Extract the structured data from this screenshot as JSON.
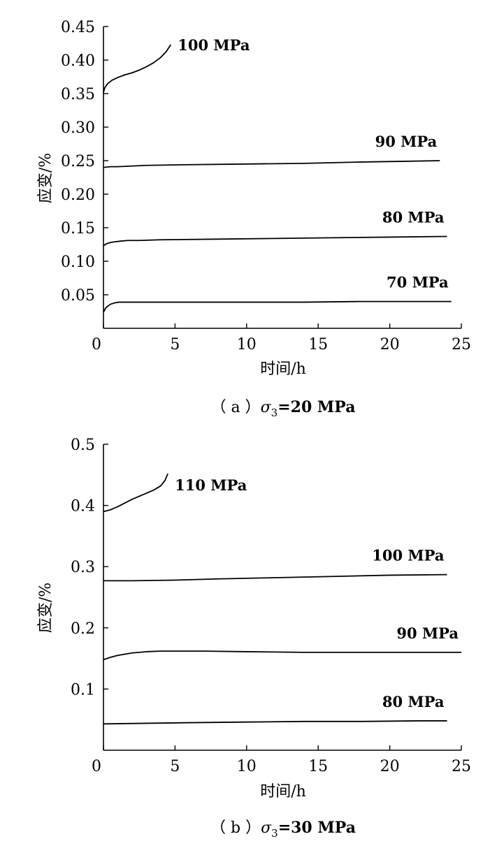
{
  "chart_data": [
    {
      "type": "line",
      "caption_prefix": "（ a ）",
      "caption_sigma": "σ",
      "caption_sub": "3",
      "caption_rest": "=20 MPa",
      "xlabel": "时间/h",
      "ylabel": "应变/%",
      "xlim": [
        0,
        25
      ],
      "ylim": [
        0,
        0.45
      ],
      "xticks": [
        "0",
        "5",
        "10",
        "15",
        "20",
        "25"
      ],
      "yticks": [
        "0.05",
        "0.10",
        "0.15",
        "0.20",
        "0.25",
        "0.30",
        "0.35",
        "0.40",
        "0.45"
      ],
      "grid": false,
      "series": [
        {
          "name": "100 MPa",
          "x": [
            0,
            0.1,
            0.3,
            0.6,
            1.0,
            1.5,
            2.0,
            2.5,
            3.0,
            3.5,
            4.0,
            4.4,
            4.7
          ],
          "y": [
            0.352,
            0.359,
            0.365,
            0.37,
            0.374,
            0.378,
            0.381,
            0.385,
            0.39,
            0.396,
            0.404,
            0.413,
            0.423
          ]
        },
        {
          "name": "90 MPa",
          "x": [
            0,
            0.5,
            1,
            3,
            6,
            10,
            14,
            18,
            21,
            23.5
          ],
          "y": [
            0.24,
            0.241,
            0.241,
            0.243,
            0.244,
            0.245,
            0.246,
            0.248,
            0.249,
            0.25
          ]
        },
        {
          "name": "80 MPa",
          "x": [
            0,
            0.2,
            0.5,
            0.8,
            1.2,
            1.7,
            2.5,
            4,
            8,
            12,
            16,
            20,
            24
          ],
          "y": [
            0.123,
            0.126,
            0.128,
            0.129,
            0.13,
            0.131,
            0.131,
            0.132,
            0.133,
            0.134,
            0.135,
            0.136,
            0.137
          ]
        },
        {
          "name": "70 MPa",
          "x": [
            0,
            0.15,
            0.3,
            0.5,
            0.8,
            1.1,
            1.5,
            2.0,
            3,
            6,
            10,
            14,
            18,
            22,
            24.3
          ],
          "y": [
            0.024,
            0.03,
            0.033,
            0.036,
            0.038,
            0.039,
            0.039,
            0.039,
            0.039,
            0.039,
            0.039,
            0.039,
            0.04,
            0.04,
            0.04
          ]
        }
      ]
    },
    {
      "type": "line",
      "caption_prefix": "（ b ）",
      "caption_sigma": "σ",
      "caption_sub": "3",
      "caption_rest": "=30 MPa",
      "xlabel": "时间/h",
      "ylabel": "应变/%",
      "xlim": [
        0,
        25
      ],
      "ylim": [
        0,
        0.5
      ],
      "xticks": [
        "0",
        "5",
        "10",
        "15",
        "20",
        "25"
      ],
      "yticks": [
        "0.1",
        "0.2",
        "0.3",
        "0.4",
        "0.5"
      ],
      "grid": false,
      "series": [
        {
          "name": "110 MPa",
          "x": [
            0,
            0.5,
            1.0,
            1.5,
            2.0,
            2.5,
            3.0,
            3.5,
            4.0,
            4.3,
            4.5
          ],
          "y": [
            0.39,
            0.393,
            0.398,
            0.404,
            0.41,
            0.415,
            0.42,
            0.425,
            0.432,
            0.441,
            0.452
          ]
        },
        {
          "name": "100 MPa",
          "x": [
            0,
            2,
            5,
            8,
            12,
            16,
            20,
            24
          ],
          "y": [
            0.277,
            0.277,
            0.278,
            0.28,
            0.282,
            0.284,
            0.286,
            0.287
          ]
        },
        {
          "name": "90 MPa",
          "x": [
            0,
            0.5,
            1,
            2,
            3,
            4,
            5,
            7,
            10,
            14,
            18,
            22,
            25
          ],
          "y": [
            0.148,
            0.152,
            0.155,
            0.159,
            0.161,
            0.162,
            0.162,
            0.162,
            0.161,
            0.16,
            0.16,
            0.16,
            0.16
          ]
        },
        {
          "name": "80 MPa",
          "x": [
            0,
            3,
            6,
            10,
            14,
            18,
            22,
            24
          ],
          "y": [
            0.043,
            0.044,
            0.045,
            0.046,
            0.047,
            0.047,
            0.048,
            0.048
          ]
        }
      ]
    }
  ]
}
